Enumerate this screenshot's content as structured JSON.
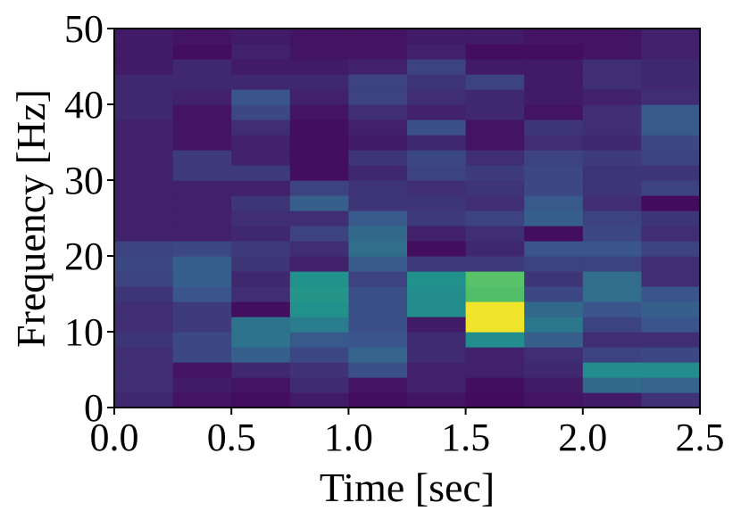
{
  "chart_data": {
    "type": "heatmap",
    "title": "",
    "xlabel": "Time [sec]",
    "ylabel": "Frequency [Hz]",
    "xlim": [
      0,
      2.5
    ],
    "ylim": [
      0,
      50
    ],
    "xticks": [
      "0.0",
      "0.5",
      "1.0",
      "1.5",
      "2.0",
      "2.5"
    ],
    "yticks": [
      "0",
      "10",
      "20",
      "30",
      "40",
      "50"
    ],
    "colormap": "viridis",
    "x_edges": [
      0,
      0.25,
      0.5,
      0.75,
      1.0,
      1.25,
      1.5,
      1.75,
      2.0,
      2.25,
      2.5
    ],
    "y_bin_hz": 2,
    "values": [
      [
        0.12,
        0.06,
        0.04,
        0.08,
        0.04,
        0.06,
        0.03,
        0.06,
        0.08,
        0.15
      ],
      [
        0.14,
        0.08,
        0.06,
        0.13,
        0.06,
        0.1,
        0.04,
        0.08,
        0.35,
        0.32
      ],
      [
        0.14,
        0.06,
        0.12,
        0.15,
        0.24,
        0.1,
        0.1,
        0.12,
        0.48,
        0.48
      ],
      [
        0.14,
        0.22,
        0.3,
        0.22,
        0.32,
        0.13,
        0.1,
        0.14,
        0.2,
        0.22
      ],
      [
        0.16,
        0.22,
        0.38,
        0.28,
        0.26,
        0.13,
        0.48,
        0.3,
        0.14,
        0.14
      ],
      [
        0.14,
        0.18,
        0.38,
        0.42,
        0.24,
        0.08,
        0.98,
        0.4,
        0.2,
        0.26
      ],
      [
        0.14,
        0.18,
        0.04,
        0.5,
        0.24,
        0.48,
        0.98,
        0.34,
        0.26,
        0.3
      ],
      [
        0.16,
        0.26,
        0.14,
        0.52,
        0.24,
        0.48,
        0.7,
        0.22,
        0.36,
        0.26
      ],
      [
        0.2,
        0.3,
        0.12,
        0.5,
        0.2,
        0.5,
        0.72,
        0.16,
        0.36,
        0.14
      ],
      [
        0.22,
        0.3,
        0.16,
        0.1,
        0.28,
        0.18,
        0.18,
        0.2,
        0.2,
        0.14
      ],
      [
        0.2,
        0.22,
        0.18,
        0.14,
        0.36,
        0.04,
        0.12,
        0.26,
        0.26,
        0.2
      ],
      [
        0.1,
        0.1,
        0.12,
        0.2,
        0.34,
        0.1,
        0.14,
        0.04,
        0.22,
        0.14
      ],
      [
        0.1,
        0.1,
        0.14,
        0.14,
        0.28,
        0.18,
        0.2,
        0.3,
        0.2,
        0.16
      ],
      [
        0.1,
        0.1,
        0.16,
        0.3,
        0.16,
        0.16,
        0.14,
        0.28,
        0.14,
        0.03
      ],
      [
        0.1,
        0.1,
        0.1,
        0.2,
        0.16,
        0.14,
        0.16,
        0.22,
        0.16,
        0.2
      ],
      [
        0.1,
        0.18,
        0.18,
        0.04,
        0.12,
        0.2,
        0.18,
        0.22,
        0.16,
        0.16
      ],
      [
        0.1,
        0.18,
        0.1,
        0.04,
        0.16,
        0.22,
        0.14,
        0.2,
        0.18,
        0.2
      ],
      [
        0.1,
        0.06,
        0.1,
        0.04,
        0.08,
        0.12,
        0.06,
        0.14,
        0.12,
        0.22
      ],
      [
        0.1,
        0.06,
        0.14,
        0.04,
        0.1,
        0.24,
        0.06,
        0.16,
        0.14,
        0.28
      ],
      [
        0.12,
        0.06,
        0.22,
        0.06,
        0.14,
        0.1,
        0.12,
        0.06,
        0.14,
        0.28
      ],
      [
        0.12,
        0.1,
        0.26,
        0.1,
        0.2,
        0.14,
        0.12,
        0.08,
        0.1,
        0.14
      ],
      [
        0.12,
        0.12,
        0.12,
        0.12,
        0.2,
        0.16,
        0.2,
        0.08,
        0.14,
        0.12
      ],
      [
        0.08,
        0.12,
        0.08,
        0.08,
        0.1,
        0.2,
        0.08,
        0.08,
        0.14,
        0.12
      ],
      [
        0.08,
        0.04,
        0.1,
        0.06,
        0.06,
        0.1,
        0.04,
        0.04,
        0.06,
        0.1
      ],
      [
        0.08,
        0.06,
        0.08,
        0.06,
        0.06,
        0.08,
        0.08,
        0.06,
        0.06,
        0.1
      ]
    ]
  }
}
